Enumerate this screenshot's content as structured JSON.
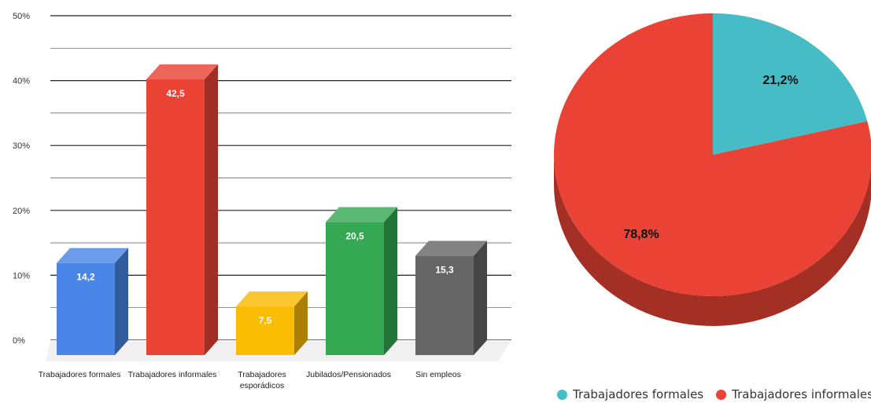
{
  "chart_data": [
    {
      "type": "bar",
      "categories": [
        "Trabajadores formales",
        "Trabajadores informales",
        "Trabajadores esporádicos",
        "Jubilados/Pensionados",
        "Sin empleos"
      ],
      "values": [
        14.2,
        42.5,
        7.5,
        20.5,
        15.3
      ],
      "value_labels": [
        "14,2",
        "42,5",
        "7,5",
        "20,5",
        "15,3"
      ],
      "colors": [
        "#4a86e8",
        "#ea4335",
        "#fbbc04",
        "#34a853",
        "#666666"
      ],
      "ylim": [
        0,
        50
      ],
      "yticks": [
        0,
        10,
        20,
        30,
        40,
        50
      ],
      "ytick_labels": [
        "0%",
        "10%",
        "20%",
        "30%",
        "40%",
        "50%"
      ],
      "grid": true,
      "style": "3d"
    },
    {
      "type": "pie",
      "labels": [
        "Trabajadores formales",
        "Trabajadores informales"
      ],
      "values": [
        21.2,
        78.8
      ],
      "value_labels": [
        "21,2%",
        "78,8%"
      ],
      "colors": [
        "#46bdc6",
        "#ea4335"
      ],
      "legend": "bottom",
      "style": "3d"
    }
  ]
}
